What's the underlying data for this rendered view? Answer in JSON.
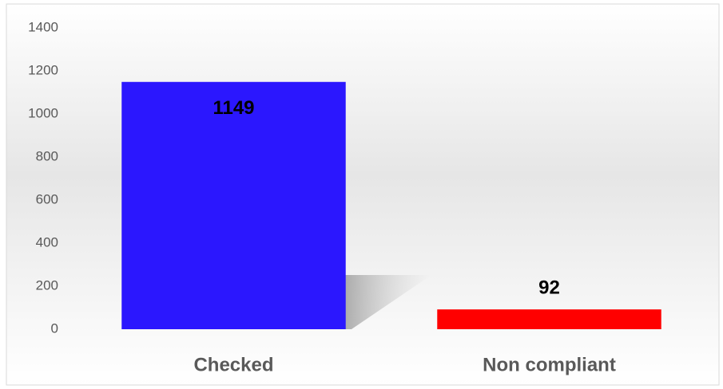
{
  "chart_data": {
    "type": "bar",
    "categories": [
      "Checked",
      "Non compliant"
    ],
    "values": [
      1149,
      92
    ],
    "colors": [
      "#2b17fe",
      "#ff0000"
    ],
    "ylim": [
      0,
      1400
    ],
    "yticks": [
      0,
      200,
      400,
      600,
      800,
      1000,
      1200,
      1400
    ],
    "grid": false,
    "data_labels": true
  }
}
